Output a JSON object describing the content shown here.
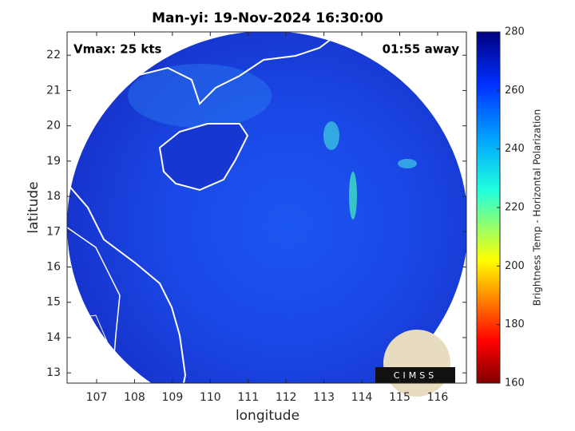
{
  "title": "Man-yi: 19-Nov-2024 16:30:00",
  "annotations": {
    "vmax": "Vmax: 25 kts",
    "away": "01:55 away",
    "logo": "CIMSS"
  },
  "axes": {
    "xlabel": "longitude",
    "ylabel": "latitude",
    "xlim": [
      106.22,
      116.76
    ],
    "xticks": [
      107,
      108,
      109,
      110,
      111,
      112,
      113,
      114,
      115,
      116
    ],
    "ylim": [
      12.71,
      22.66
    ],
    "yticks": [
      13,
      14,
      15,
      16,
      17,
      18,
      19,
      20,
      21,
      22
    ]
  },
  "colorbar": {
    "label": "Brightness Temp - Horizontal Polarization",
    "lim": [
      160,
      280
    ],
    "ticks": [
      160,
      180,
      200,
      220,
      240,
      260,
      280
    ]
  }
}
